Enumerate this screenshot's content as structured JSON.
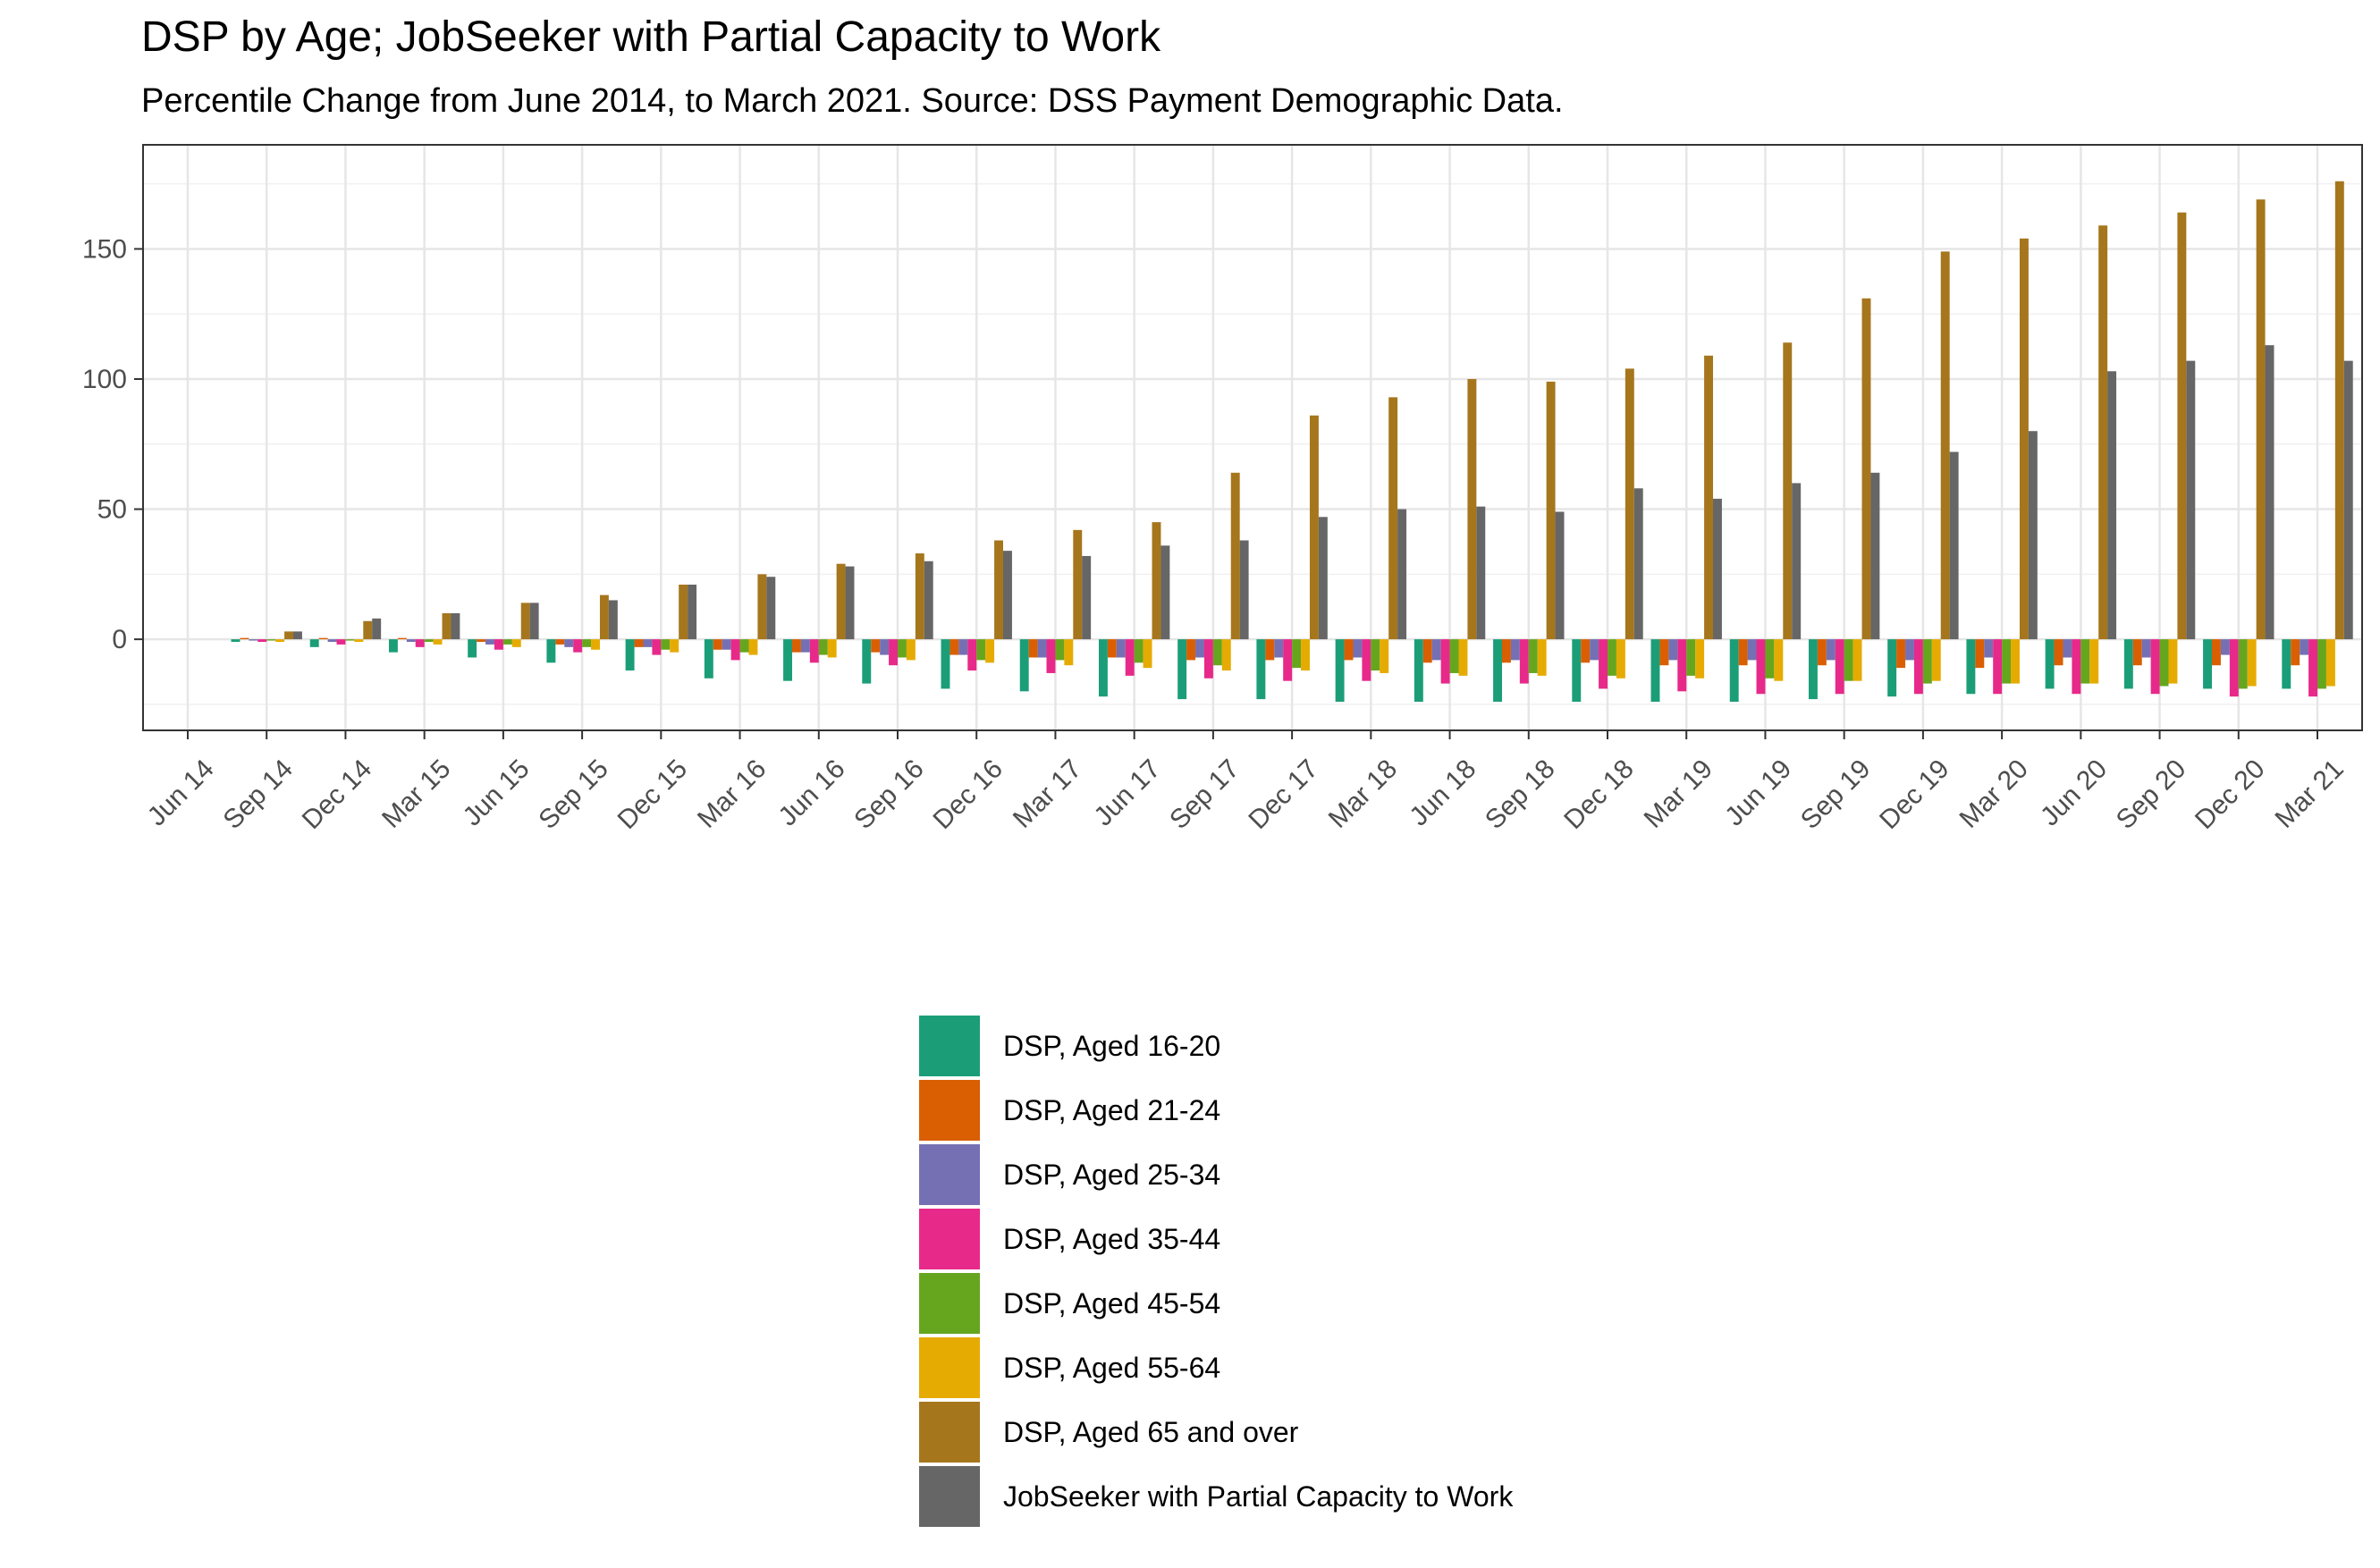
{
  "title": "DSP by Age; JobSeeker with Partial Capacity to Work",
  "subtitle": "Percentile Change from June 2014, to March 2021. Source: DSS Payment Demographic Data.",
  "chart_data": {
    "type": "bar",
    "categories": [
      "Jun 14",
      "Sep 14",
      "Dec 14",
      "Mar 15",
      "Jun 15",
      "Sep 15",
      "Dec 15",
      "Mar 16",
      "Jun 16",
      "Sep 16",
      "Dec 16",
      "Mar 17",
      "Jun 17",
      "Sep 17",
      "Dec 17",
      "Mar 18",
      "Jun 18",
      "Sep 18",
      "Dec 18",
      "Mar 19",
      "Jun 19",
      "Sep 19",
      "Dec 19",
      "Mar 20",
      "Jun 20",
      "Sep 20",
      "Dec 20",
      "Mar 21"
    ],
    "ylim": [
      -35,
      190
    ],
    "yticks": [
      0,
      50,
      100,
      150
    ],
    "ytick_labels": [
      "0",
      "50",
      "100",
      "150"
    ],
    "grid": true,
    "legend_position": "bottom",
    "series": [
      {
        "name": "DSP, Aged 16-20",
        "color": "#1b9e77",
        "values": [
          0,
          -1,
          -3,
          -5,
          -7,
          -9,
          -12,
          -15,
          -16,
          -17,
          -19,
          -20,
          -22,
          -23,
          -23,
          -24,
          -24,
          -24,
          -24,
          -24,
          -24,
          -23,
          -22,
          -21,
          -19,
          -19,
          -19,
          -19
        ]
      },
      {
        "name": "DSP, Aged 21-24",
        "color": "#d95f02",
        "values": [
          0,
          0.5,
          0.5,
          0.5,
          -1,
          -2,
          -3,
          -4,
          -5,
          -5,
          -6,
          -7,
          -7,
          -8,
          -8,
          -8,
          -9,
          -9,
          -9,
          -10,
          -10,
          -10,
          -11,
          -11,
          -10,
          -10,
          -10,
          -10
        ]
      },
      {
        "name": "DSP, Aged 25-34",
        "color": "#7570b3",
        "values": [
          0,
          -0.5,
          -1,
          -1,
          -2,
          -3,
          -3,
          -4,
          -5,
          -6,
          -6,
          -7,
          -7,
          -7,
          -7,
          -7,
          -8,
          -8,
          -8,
          -8,
          -8,
          -8,
          -8,
          -7,
          -7,
          -7,
          -6,
          -6
        ]
      },
      {
        "name": "DSP, Aged 35-44",
        "color": "#e7298a",
        "values": [
          0,
          -1,
          -2,
          -3,
          -4,
          -5,
          -6,
          -8,
          -9,
          -10,
          -12,
          -13,
          -14,
          -15,
          -16,
          -16,
          -17,
          -17,
          -19,
          -20,
          -21,
          -21,
          -21,
          -21,
          -21,
          -21,
          -22,
          -22
        ]
      },
      {
        "name": "DSP, Aged 45-54",
        "color": "#66a61e",
        "values": [
          0,
          -0.5,
          -0.5,
          -1,
          -2,
          -3,
          -4,
          -5,
          -6,
          -7,
          -8,
          -8,
          -9,
          -10,
          -11,
          -12,
          -13,
          -13,
          -14,
          -14,
          -15,
          -16,
          -17,
          -17,
          -17,
          -18,
          -19,
          -19
        ]
      },
      {
        "name": "DSP, Aged 55-64",
        "color": "#e6ab02",
        "values": [
          0,
          -1,
          -1,
          -2,
          -3,
          -4,
          -5,
          -6,
          -7,
          -8,
          -9,
          -10,
          -11,
          -12,
          -12,
          -13,
          -14,
          -14,
          -15,
          -15,
          -16,
          -16,
          -16,
          -17,
          -17,
          -17,
          -18,
          -18
        ]
      },
      {
        "name": "DSP, Aged 65 and over",
        "color": "#a6761d",
        "values": [
          0,
          3,
          7,
          10,
          14,
          17,
          21,
          25,
          29,
          33,
          38,
          42,
          45,
          64,
          86,
          93,
          100,
          99,
          104,
          109,
          114,
          131,
          149,
          154,
          159,
          164,
          169,
          176
        ]
      },
      {
        "name": "JobSeeker with Partial Capacity to Work",
        "color": "#666666",
        "values": [
          0,
          3,
          8,
          10,
          14,
          15,
          21,
          24,
          28,
          30,
          34,
          32,
          36,
          38,
          47,
          50,
          51,
          49,
          58,
          54,
          60,
          64,
          72,
          80,
          103,
          107,
          113,
          107
        ]
      }
    ]
  }
}
